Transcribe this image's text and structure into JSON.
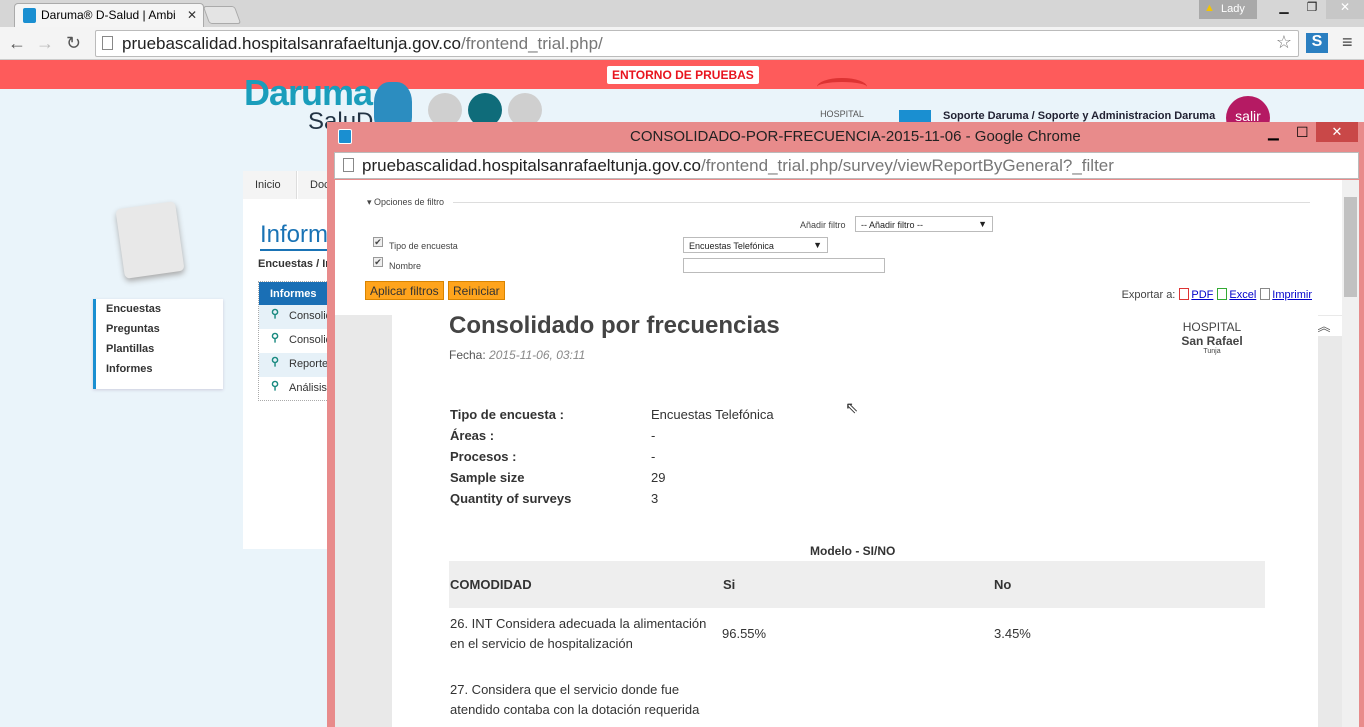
{
  "browser": {
    "tab_title": "Daruma® D-Salud | Ambi",
    "user": "Lady",
    "url_host": "pruebascalidad.hospitalsanrafaeltunja.gov.co",
    "url_path": "/frontend_trial.php/"
  },
  "banner": "ENTORNO DE PRUEBAS",
  "header": {
    "logo": "Daruma",
    "logo_sub": "SaluD",
    "hospital": "HOSPITAL",
    "user_name": "Soporte Daruma / Soporte y Administracion Daruma",
    "logout": "salir"
  },
  "sidebar": {
    "items": [
      {
        "label": "Encuestas"
      },
      {
        "label": "Preguntas"
      },
      {
        "label": "Plantillas"
      },
      {
        "label": "Informes"
      }
    ]
  },
  "main": {
    "tabs": [
      {
        "label": "Inicio"
      },
      {
        "label": "Doc"
      }
    ],
    "title": "Informes",
    "breadcrumb": "Encuestas / Informes",
    "panel_title": "Informes",
    "items": [
      {
        "label": "Consolidado"
      },
      {
        "label": "Consolidado"
      },
      {
        "label": "Reporte"
      },
      {
        "label": "Análisis"
      }
    ]
  },
  "popup": {
    "title": "CONSOLIDADO-POR-FRECUENCIA-2015-11-06 - Google Chrome",
    "url_host": "pruebascalidad.hospitalsanrafaeltunja.gov.co",
    "url_path": "/frontend_trial.php/survey/viewReportByGeneral?_filter",
    "filters": {
      "legend": "Opciones de filtro",
      "add_filter_label": "Añadir filtro",
      "add_filter_value": "-- Añadir filtro --",
      "survey_type_label": "Tipo de encuesta",
      "survey_type_value": "Encuestas Telefónica",
      "name_label": "Nombre",
      "name_value": "",
      "apply": "Aplicar filtros",
      "reset": "Reiniciar",
      "export_label": "Exportar a:",
      "pdf": "PDF",
      "excel": "Excel",
      "print": "Imprimir"
    },
    "report": {
      "title": "Consolidado por frecuencias",
      "date_label": "Fecha:",
      "date_value": "2015-11-06, 03:11",
      "logo_line1": "HOSPITAL",
      "logo_line2": "San Rafael",
      "logo_line3": "Tunja",
      "info": [
        {
          "label": "Tipo de encuesta :",
          "value": "Encuestas Telefónica"
        },
        {
          "label": "Áreas :",
          "value": "-"
        },
        {
          "label": "Procesos :",
          "value": "-"
        },
        {
          "label": "Sample size",
          "value": "29"
        },
        {
          "label": "Quantity of surveys",
          "value": "3"
        }
      ],
      "model": "Modelo - SI/NO",
      "columns": [
        "COMODIDAD",
        "Si",
        "No"
      ],
      "rows": [
        {
          "question": "26. INT Considera adecuada la alimentación en el servicio de hospitalización",
          "si": "96.55%",
          "no": "3.45%"
        },
        {
          "question": "27. Considera que el servicio donde fue atendido contaba con la dotación requerida",
          "si": "",
          "no": ""
        }
      ]
    }
  }
}
